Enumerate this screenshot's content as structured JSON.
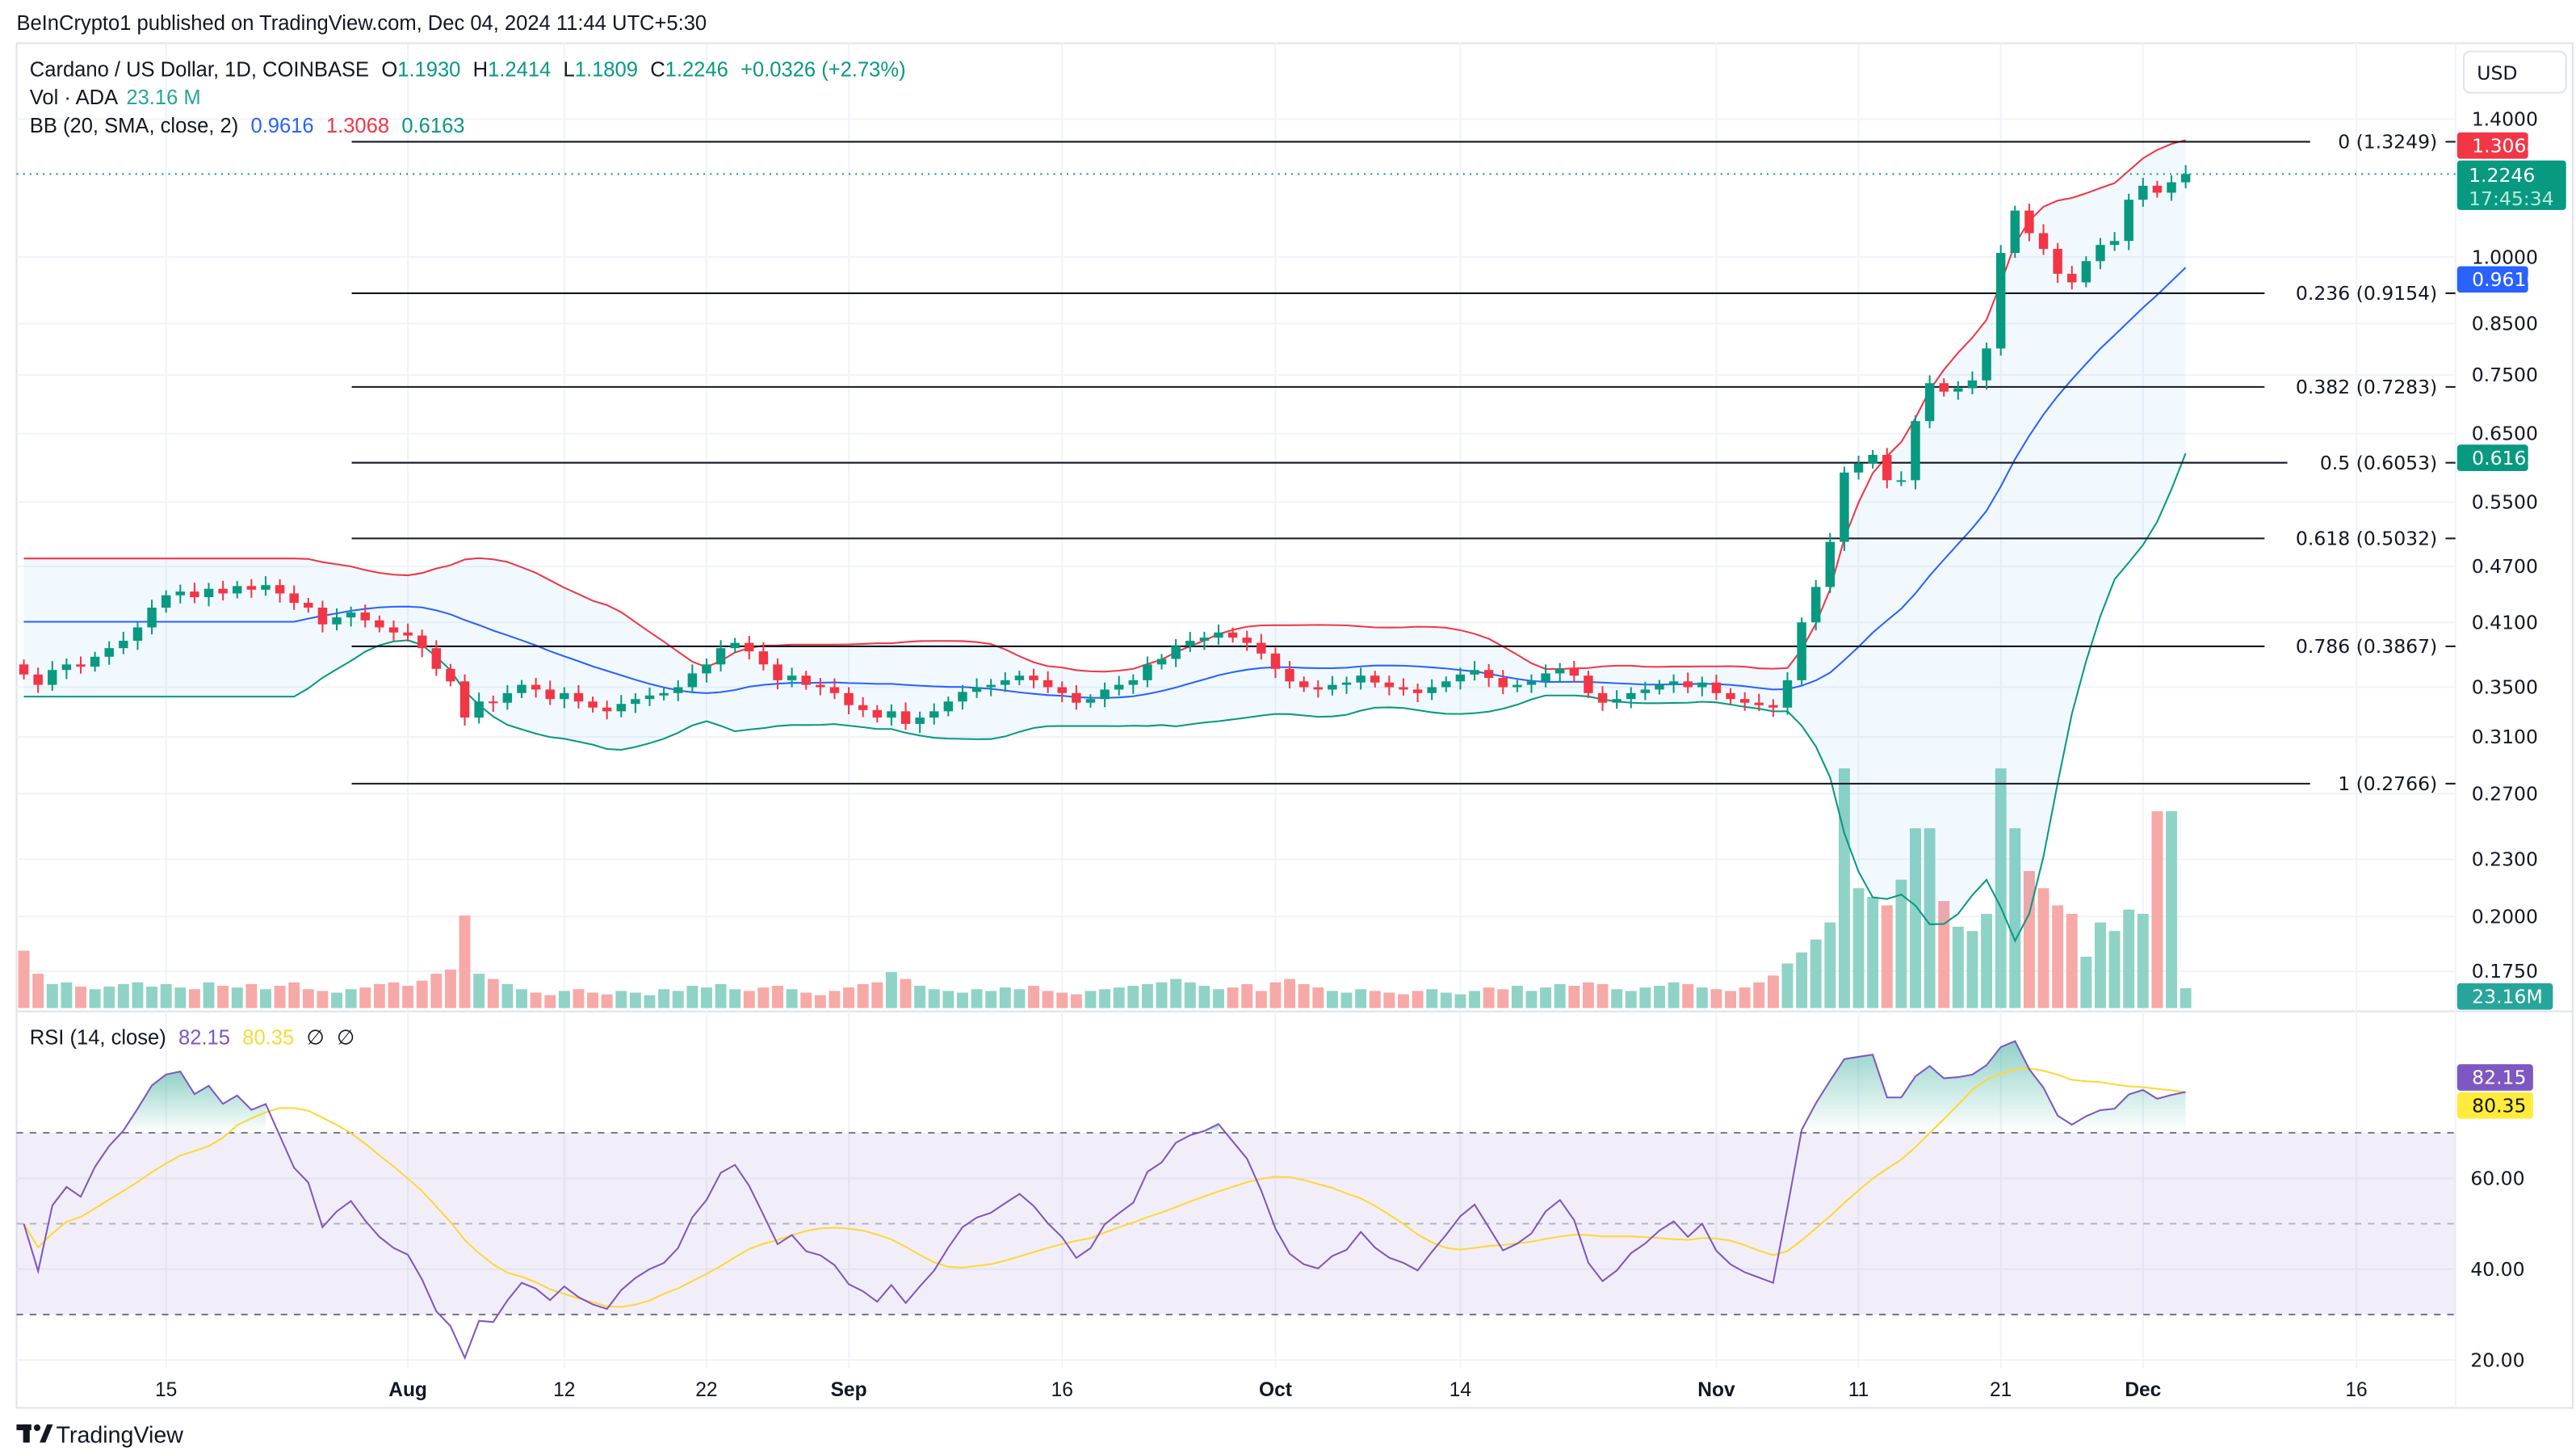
{
  "publish_line": "BeInCrypto1 published on TradingView.com, Dec 04, 2024 11:44 UTC+5:30",
  "legend": {
    "symbol": "Cardano / US Dollar, 1D, COINBASE",
    "o_label": "O",
    "o": "1.1930",
    "h_label": "H",
    "h": "1.2414",
    "l_label": "L",
    "l": "1.1809",
    "c_label": "C",
    "c": "1.2246",
    "change": "+0.0326 (+2.73%)",
    "vol_label": "Vol · ADA",
    "vol": "23.16 M",
    "bb_label": "BB (20, SMA, close, 2)",
    "bb_basis": "0.9616",
    "bb_upper": "1.3068",
    "bb_lower": "0.6163",
    "rsi_label": "RSI (14, close)",
    "rsi": "82.15",
    "rsi_ma": "80.35",
    "rsi_null1": "∅",
    "rsi_null2": "∅"
  },
  "currency_button": "USD",
  "tags": {
    "bb_upper": "1.3068",
    "price": "1.2246",
    "countdown": "17:45:34",
    "bb_basis": "0.9616",
    "bb_lower": "0.6163",
    "volume": "23.16M",
    "rsi": "82.15",
    "rsi_ma": "80.35"
  },
  "colors": {
    "up": "#089981",
    "down": "#F23645",
    "basis": "#2962FF",
    "rsi": "#7E57C2",
    "rsi_ma": "#FDD835"
  },
  "logo_text": "TradingView",
  "chart_data": {
    "type": "candlestick",
    "title": "Cardano / US Dollar, 1D, COINBASE",
    "start_date": "2024-07-05",
    "end_date": "2024-12-04",
    "y_scale": "log",
    "price_ticks": [
      "1.4000",
      "1.0000",
      "0.8500",
      "0.7500",
      "0.6500",
      "0.5500",
      "0.4700",
      "0.4100",
      "0.3500",
      "0.3100",
      "0.2700",
      "0.2300",
      "0.2000",
      "0.1750"
    ],
    "price_tick_values": [
      1.4,
      1.0,
      0.85,
      0.75,
      0.65,
      0.55,
      0.47,
      0.41,
      0.35,
      0.31,
      0.27,
      0.23,
      0.2,
      0.175
    ],
    "rsi_ticks": [
      "60.00",
      "40.00",
      "20.00"
    ],
    "rsi_tick_values": [
      60,
      40,
      20
    ],
    "rsi_bands": [
      70,
      50,
      30
    ],
    "time_ticks": [
      {
        "label": "15",
        "day": 10,
        "bold": false
      },
      {
        "label": "Aug",
        "day": 27,
        "bold": true
      },
      {
        "label": "12",
        "day": 38,
        "bold": false
      },
      {
        "label": "22",
        "day": 48,
        "bold": false
      },
      {
        "label": "Sep",
        "day": 58,
        "bold": true
      },
      {
        "label": "16",
        "day": 73,
        "bold": false
      },
      {
        "label": "Oct",
        "day": 88,
        "bold": true
      },
      {
        "label": "14",
        "day": 101,
        "bold": false
      },
      {
        "label": "Nov",
        "day": 119,
        "bold": true
      },
      {
        "label": "11",
        "day": 129,
        "bold": false
      },
      {
        "label": "21",
        "day": 139,
        "bold": false
      },
      {
        "label": "Dec",
        "day": 149,
        "bold": true
      },
      {
        "label": "16",
        "day": 164,
        "bold": false
      }
    ],
    "fib_levels": [
      {
        "label": "0 (1.3249)",
        "price": 1.3249
      },
      {
        "label": "0.236 (0.9154)",
        "price": 0.9154
      },
      {
        "label": "0.382 (0.7283)",
        "price": 0.7283
      },
      {
        "label": "0.5 (0.6053)",
        "price": 0.6053
      },
      {
        "label": "0.618 (0.5032)",
        "price": 0.5032
      },
      {
        "label": "0.786 (0.3867)",
        "price": 0.3867
      },
      {
        "label": "1 (0.2766)",
        "price": 0.2766
      }
    ],
    "first_open": 0.37,
    "close": [
      0.361,
      0.352,
      0.365,
      0.37,
      0.368,
      0.377,
      0.385,
      0.392,
      0.405,
      0.425,
      0.438,
      0.442,
      0.436,
      0.445,
      0.44,
      0.448,
      0.444,
      0.449,
      0.44,
      0.43,
      0.425,
      0.408,
      0.415,
      0.42,
      0.412,
      0.405,
      0.4,
      0.397,
      0.385,
      0.366,
      0.355,
      0.325,
      0.338,
      0.337,
      0.345,
      0.352,
      0.348,
      0.34,
      0.345,
      0.338,
      0.333,
      0.33,
      0.336,
      0.34,
      0.343,
      0.345,
      0.35,
      0.362,
      0.37,
      0.385,
      0.39,
      0.382,
      0.37,
      0.356,
      0.36,
      0.352,
      0.35,
      0.345,
      0.335,
      0.331,
      0.325,
      0.33,
      0.32,
      0.325,
      0.33,
      0.338,
      0.346,
      0.35,
      0.352,
      0.356,
      0.36,
      0.356,
      0.35,
      0.345,
      0.337,
      0.34,
      0.348,
      0.352,
      0.356,
      0.37,
      0.375,
      0.387,
      0.392,
      0.395,
      0.4,
      0.395,
      0.39,
      0.38,
      0.366,
      0.355,
      0.35,
      0.348,
      0.352,
      0.354,
      0.36,
      0.354,
      0.35,
      0.348,
      0.345,
      0.35,
      0.355,
      0.361,
      0.365,
      0.358,
      0.35,
      0.352,
      0.355,
      0.362,
      0.366,
      0.36,
      0.345,
      0.337,
      0.34,
      0.345,
      0.348,
      0.352,
      0.355,
      0.35,
      0.354,
      0.345,
      0.34,
      0.337,
      0.335,
      0.333,
      0.356,
      0.41,
      0.447,
      0.499,
      0.591,
      0.604,
      0.617,
      0.58,
      0.58,
      0.67,
      0.735,
      0.72,
      0.726,
      0.74,
      0.8,
      1.01,
      1.12,
      1.06,
      1.02,
      0.96,
      0.94,
      0.99,
      1.03,
      1.04,
      1.15,
      1.19,
      1.17,
      1.2,
      1.2246
    ],
    "volume_m": [
      67,
      40,
      28,
      30,
      25,
      22,
      25,
      28,
      30,
      25,
      28,
      24,
      22,
      30,
      26,
      24,
      28,
      22,
      26,
      30,
      22,
      20,
      18,
      22,
      24,
      28,
      30,
      26,
      32,
      40,
      45,
      108,
      40,
      34,
      28,
      22,
      18,
      15,
      20,
      22,
      18,
      16,
      20,
      18,
      15,
      22,
      20,
      26,
      24,
      28,
      22,
      20,
      24,
      26,
      22,
      18,
      15,
      20,
      24,
      28,
      30,
      42,
      34,
      26,
      22,
      20,
      18,
      22,
      20,
      24,
      22,
      26,
      20,
      18,
      16,
      20,
      22,
      24,
      26,
      28,
      30,
      34,
      30,
      26,
      22,
      24,
      28,
      20,
      30,
      34,
      28,
      24,
      20,
      18,
      22,
      20,
      18,
      16,
      20,
      22,
      18,
      16,
      20,
      24,
      22,
      26,
      20,
      24,
      28,
      26,
      30,
      28,
      22,
      20,
      24,
      26,
      30,
      28,
      24,
      22,
      20,
      24,
      30,
      38,
      52,
      65,
      80,
      100,
      280,
      140,
      130,
      120,
      150,
      210,
      210,
      125,
      95,
      90,
      110,
      280,
      210,
      160,
      140,
      120,
      110,
      60,
      100,
      90,
      115,
      110,
      230,
      230,
      23.16
    ]
  }
}
